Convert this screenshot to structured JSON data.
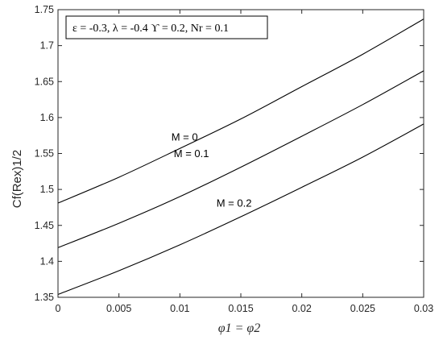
{
  "chart_data": {
    "type": "line",
    "x": [
      0,
      0.005,
      0.01,
      0.015,
      0.02,
      0.025,
      0.03
    ],
    "x_ticks": [
      "0",
      "0.005",
      "0.01",
      "0.015",
      "0.02",
      "0.025",
      "0.03"
    ],
    "y_ticks": [
      "1.35",
      "1.4",
      "1.45",
      "1.5",
      "1.55",
      "1.6",
      "1.65",
      "1.7",
      "1.75"
    ],
    "xlim": [
      0,
      0.03
    ],
    "ylim": [
      1.35,
      1.75
    ],
    "xlabel": "φ1 = φ2",
    "ylabel": "Cf(Rex)1/2",
    "legend_text": "ε = -0.3, λ = -0.4 ϒ = 0.2, Nr = 0.1",
    "legend_position": "top-left",
    "grid": false,
    "series": [
      {
        "name": "M = 0",
        "values": [
          1.481,
          1.517,
          1.557,
          1.598,
          1.643,
          1.688,
          1.737
        ]
      },
      {
        "name": "M = 0.1",
        "values": [
          1.419,
          1.453,
          1.49,
          1.531,
          1.574,
          1.618,
          1.665
        ]
      },
      {
        "name": "M = 0.2",
        "values": [
          1.354,
          1.387,
          1.423,
          1.462,
          1.503,
          1.545,
          1.591
        ]
      }
    ],
    "annotations": [
      {
        "text": "M = 0",
        "x": 0.0093,
        "y": 1.568
      },
      {
        "text": "M = 0.1",
        "x": 0.0095,
        "y": 1.545
      },
      {
        "text": "M = 0.2",
        "x": 0.013,
        "y": 1.476
      }
    ]
  }
}
